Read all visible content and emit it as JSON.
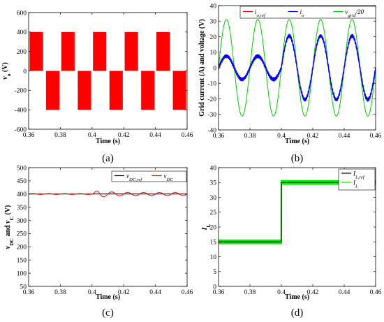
{
  "chart_data": [
    {
      "id": "a",
      "type": "line",
      "caption": "(a)",
      "xlabel": "Time (s)",
      "ylabel": "v_o (V)",
      "xlim": [
        0.36,
        0.46
      ],
      "ylim": [
        -600,
        600
      ],
      "xticks": [
        "0.36",
        "0.38",
        "0.4",
        "0.42",
        "0.44",
        "0.46"
      ],
      "yticks": [
        "-600",
        "-400",
        "-200",
        "0",
        "200",
        "400",
        "600"
      ],
      "legend": [],
      "series": [
        {
          "color": "#ff0000",
          "kind": "pwm",
          "frequency_hz": 50,
          "amplitude_v": 400,
          "switching": "unipolar"
        }
      ]
    },
    {
      "id": "b",
      "type": "line",
      "caption": "(b)",
      "xlabel": "Time (s)",
      "ylabel": "Grid current (A) and voltage (V)",
      "xlim": [
        0.36,
        0.46
      ],
      "ylim": [
        -40,
        40
      ],
      "xticks": [
        "0.36",
        "0.38",
        "0.4",
        "0.42",
        "0.44",
        "0.46"
      ],
      "yticks": [
        "-40",
        "-30",
        "-20",
        "-10",
        "0",
        "10",
        "20",
        "30",
        "40"
      ],
      "legend": [
        {
          "name": "i_o,ref",
          "color": "#ff0000"
        },
        {
          "name": "i_o",
          "color": "#0000ff"
        },
        {
          "name": "v_grid/20",
          "color": "#00cc00"
        }
      ],
      "series": [
        {
          "name": "v_grid/20",
          "color": "#00cc00",
          "kind": "sine",
          "frequency_hz": 50,
          "amplitude": 31.1
        },
        {
          "name": "i_o,ref",
          "color": "#ff0000",
          "kind": "sine-step",
          "frequency_hz": 50,
          "amplitude_before": 7.5,
          "amplitude_after": 20.5,
          "step_time": 0.4
        },
        {
          "name": "i_o",
          "color": "#0000ff",
          "kind": "sine-step",
          "frequency_hz": 50,
          "amplitude_before": 7.5,
          "amplitude_after": 20.5,
          "step_time": 0.4,
          "ripple": 1.4
        }
      ]
    },
    {
      "id": "c",
      "type": "line",
      "caption": "(c)",
      "xlabel": "Time (s)",
      "ylabel": "v_DC and v_C (V)",
      "xlim": [
        0.36,
        0.46
      ],
      "ylim": [
        50,
        500
      ],
      "xticks": [
        "0.36",
        "0.38",
        "0.4",
        "0.42",
        "0.44",
        "0.46"
      ],
      "yticks": [
        "50",
        "100",
        "150",
        "200",
        "250",
        "300",
        "350",
        "400",
        "450",
        "500"
      ],
      "legend": [
        {
          "name": "v_DC,ref",
          "color": "#000000"
        },
        {
          "name": "v_DC",
          "color": "#ff0000"
        }
      ],
      "series": [
        {
          "name": "v_DC,ref",
          "color": "#000000",
          "kind": "constant",
          "value": 400
        },
        {
          "name": "v_DC",
          "color": "#ff0000",
          "kind": "ripple",
          "mean": 400,
          "ripple_before": 1.5,
          "ripple_after": 6,
          "frequency_hz": 100,
          "step_time": 0.4,
          "overshoot": 16
        }
      ]
    },
    {
      "id": "d",
      "type": "line",
      "caption": "(d)",
      "xlabel": "Time (s)",
      "ylabel": "I_L",
      "xlim": [
        0.36,
        0.46
      ],
      "ylim": [
        0,
        40
      ],
      "xticks": [
        "0.36",
        "0.38",
        "0.4",
        "0.42",
        "0.44",
        "0.46"
      ],
      "yticks": [
        "0",
        "5",
        "10",
        "15",
        "20",
        "25",
        "30",
        "35",
        "40"
      ],
      "legend": [
        {
          "name": "I_L,ref",
          "color": "#000000"
        },
        {
          "name": "I_L",
          "color": "#00ee00"
        }
      ],
      "series": [
        {
          "name": "I_L",
          "color": "#00ee00",
          "kind": "step-ripple",
          "before": 15,
          "after": 35,
          "step_time": 0.4,
          "ripple": 0.8
        },
        {
          "name": "I_L,ref",
          "color": "#000000",
          "kind": "step",
          "before": 15,
          "after": 35,
          "step_time": 0.4
        }
      ]
    }
  ]
}
